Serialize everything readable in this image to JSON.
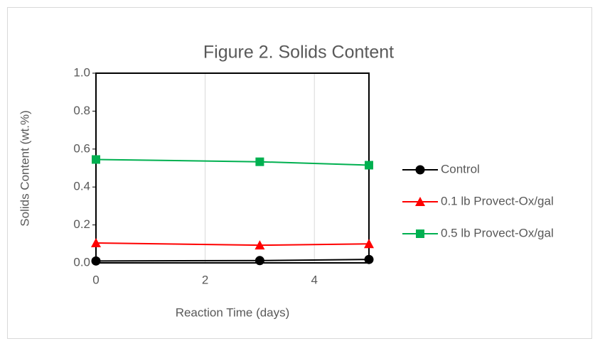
{
  "chart_data": {
    "type": "line",
    "title": "Figure 2.  Solids Content",
    "x_label": "Reaction Time (days)",
    "y_label": "Solids Content (wt.%)",
    "x": [
      0,
      3,
      5
    ],
    "xlim": [
      0,
      5
    ],
    "xticks": [
      0,
      2,
      4
    ],
    "ylim": [
      0,
      1
    ],
    "yticks": [
      {
        "value": 0,
        "label": "0.0"
      },
      0.2,
      0.4,
      0.6,
      0.8,
      {
        "value": 1,
        "label": "1.0"
      }
    ],
    "grid": true,
    "legend": "right",
    "series": [
      {
        "name": "Control",
        "color": "#000000",
        "marker": "circle",
        "values": [
          0.01,
          0.012,
          0.018
        ]
      },
      {
        "name": "0.1 lb Provect-Ox/gal",
        "color": "#ff0000",
        "marker": "triangle",
        "values": [
          0.105,
          0.093,
          0.1
        ]
      },
      {
        "name": "0.5 lb Provect-Ox/gal",
        "color": "#00b050",
        "marker": "square",
        "values": [
          0.545,
          0.533,
          0.515
        ]
      }
    ]
  }
}
